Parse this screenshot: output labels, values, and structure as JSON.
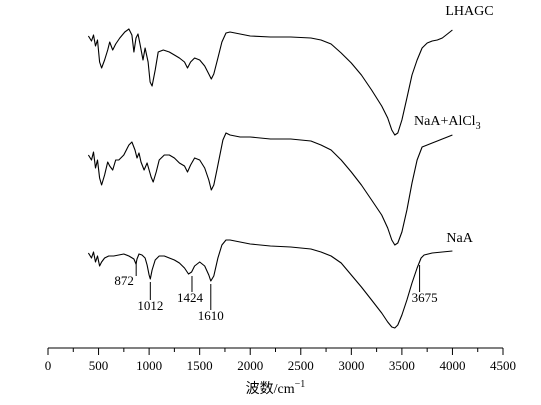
{
  "chart_data": {
    "type": "line",
    "title": "",
    "xlabel": "波数/cm",
    "xlabel_superscript": "−1",
    "ylabel": "",
    "xlim": [
      0,
      4500
    ],
    "xticks": [
      0,
      500,
      1000,
      1500,
      2000,
      2500,
      3000,
      3500,
      4000,
      4500
    ],
    "x_minor_step": 250,
    "grid": false,
    "legend": "none",
    "series": [
      {
        "name": "LHAGC",
        "points": [
          [
            400,
            36
          ],
          [
            430,
            41
          ],
          [
            450,
            35
          ],
          [
            470,
            46
          ],
          [
            490,
            40
          ],
          [
            510,
            62
          ],
          [
            530,
            68
          ],
          [
            560,
            60
          ],
          [
            590,
            50
          ],
          [
            610,
            42
          ],
          [
            640,
            50
          ],
          [
            670,
            44
          ],
          [
            710,
            38
          ],
          [
            760,
            32
          ],
          [
            800,
            29
          ],
          [
            830,
            35
          ],
          [
            850,
            52
          ],
          [
            870,
            38
          ],
          [
            890,
            34
          ],
          [
            910,
            44
          ],
          [
            940,
            60
          ],
          [
            960,
            48
          ],
          [
            990,
            62
          ],
          [
            1010,
            82
          ],
          [
            1030,
            86
          ],
          [
            1060,
            70
          ],
          [
            1090,
            52
          ],
          [
            1140,
            50
          ],
          [
            1200,
            52
          ],
          [
            1250,
            55
          ],
          [
            1300,
            58
          ],
          [
            1350,
            62
          ],
          [
            1380,
            68
          ],
          [
            1410,
            62
          ],
          [
            1450,
            58
          ],
          [
            1500,
            60
          ],
          [
            1550,
            66
          ],
          [
            1590,
            74
          ],
          [
            1615,
            79
          ],
          [
            1640,
            74
          ],
          [
            1680,
            58
          ],
          [
            1720,
            42
          ],
          [
            1760,
            33
          ],
          [
            1800,
            32
          ],
          [
            1900,
            34
          ],
          [
            2000,
            36
          ],
          [
            2200,
            37
          ],
          [
            2400,
            37
          ],
          [
            2600,
            38
          ],
          [
            2700,
            40
          ],
          [
            2800,
            44
          ],
          [
            2900,
            53
          ],
          [
            3000,
            63
          ],
          [
            3100,
            75
          ],
          [
            3200,
            90
          ],
          [
            3300,
            106
          ],
          [
            3360,
            118
          ],
          [
            3400,
            130
          ],
          [
            3430,
            135
          ],
          [
            3460,
            133
          ],
          [
            3500,
            120
          ],
          [
            3550,
            98
          ],
          [
            3600,
            75
          ],
          [
            3650,
            60
          ],
          [
            3700,
            48
          ],
          [
            3750,
            43
          ],
          [
            3800,
            41
          ],
          [
            3850,
            40
          ],
          [
            3900,
            38
          ],
          [
            3950,
            34
          ],
          [
            4000,
            30
          ]
        ],
        "color": "#000000"
      },
      {
        "name": "NaA+AlCl3",
        "points": [
          [
            400,
            155
          ],
          [
            430,
            160
          ],
          [
            450,
            152
          ],
          [
            470,
            168
          ],
          [
            490,
            160
          ],
          [
            510,
            178
          ],
          [
            530,
            185
          ],
          [
            560,
            175
          ],
          [
            590,
            162
          ],
          [
            610,
            166
          ],
          [
            640,
            170
          ],
          [
            670,
            160
          ],
          [
            700,
            160
          ],
          [
            750,
            155
          ],
          [
            800,
            145
          ],
          [
            830,
            142
          ],
          [
            860,
            150
          ],
          [
            880,
            158
          ],
          [
            900,
            153
          ],
          [
            920,
            162
          ],
          [
            950,
            170
          ],
          [
            980,
            163
          ],
          [
            1000,
            170
          ],
          [
            1020,
            177
          ],
          [
            1040,
            182
          ],
          [
            1070,
            172
          ],
          [
            1100,
            160
          ],
          [
            1150,
            155
          ],
          [
            1200,
            155
          ],
          [
            1250,
            158
          ],
          [
            1300,
            163
          ],
          [
            1350,
            166
          ],
          [
            1380,
            172
          ],
          [
            1410,
            165
          ],
          [
            1450,
            158
          ],
          [
            1500,
            160
          ],
          [
            1550,
            168
          ],
          [
            1590,
            180
          ],
          [
            1615,
            190
          ],
          [
            1640,
            185
          ],
          [
            1670,
            170
          ],
          [
            1700,
            155
          ],
          [
            1730,
            140
          ],
          [
            1760,
            133
          ],
          [
            1800,
            135
          ],
          [
            1900,
            137
          ],
          [
            2000,
            137
          ],
          [
            2200,
            139
          ],
          [
            2400,
            139
          ],
          [
            2600,
            141
          ],
          [
            2700,
            145
          ],
          [
            2800,
            150
          ],
          [
            2900,
            160
          ],
          [
            3000,
            172
          ],
          [
            3100,
            185
          ],
          [
            3200,
            200
          ],
          [
            3300,
            215
          ],
          [
            3360,
            228
          ],
          [
            3400,
            240
          ],
          [
            3430,
            245
          ],
          [
            3460,
            243
          ],
          [
            3500,
            232
          ],
          [
            3550,
            210
          ],
          [
            3600,
            183
          ],
          [
            3650,
            160
          ],
          [
            3700,
            147
          ],
          [
            3750,
            145
          ],
          [
            3800,
            143
          ],
          [
            3850,
            141
          ],
          [
            3900,
            139
          ],
          [
            3950,
            137
          ],
          [
            4000,
            135
          ]
        ],
        "color": "#000000"
      },
      {
        "name": "NaA",
        "points": [
          [
            400,
            253
          ],
          [
            430,
            258
          ],
          [
            450,
            252
          ],
          [
            470,
            262
          ],
          [
            490,
            256
          ],
          [
            510,
            266
          ],
          [
            530,
            262
          ],
          [
            560,
            258
          ],
          [
            600,
            256
          ],
          [
            650,
            256
          ],
          [
            700,
            255
          ],
          [
            750,
            254
          ],
          [
            800,
            256
          ],
          [
            850,
            259
          ],
          [
            870,
            264
          ],
          [
            880,
            259
          ],
          [
            900,
            254
          ],
          [
            930,
            255
          ],
          [
            960,
            258
          ],
          [
            980,
            265
          ],
          [
            1000,
            275
          ],
          [
            1012,
            279
          ],
          [
            1030,
            270
          ],
          [
            1060,
            260
          ],
          [
            1100,
            256
          ],
          [
            1150,
            256
          ],
          [
            1200,
            258
          ],
          [
            1250,
            260
          ],
          [
            1300,
            263
          ],
          [
            1350,
            268
          ],
          [
            1390,
            274
          ],
          [
            1420,
            272
          ],
          [
            1450,
            266
          ],
          [
            1500,
            262
          ],
          [
            1550,
            266
          ],
          [
            1590,
            275
          ],
          [
            1610,
            281
          ],
          [
            1640,
            276
          ],
          [
            1680,
            258
          ],
          [
            1720,
            245
          ],
          [
            1760,
            240
          ],
          [
            1800,
            240
          ],
          [
            1900,
            242
          ],
          [
            2000,
            244
          ],
          [
            2200,
            246
          ],
          [
            2400,
            247
          ],
          [
            2600,
            249
          ],
          [
            2700,
            252
          ],
          [
            2800,
            256
          ],
          [
            2900,
            263
          ],
          [
            3000,
            275
          ],
          [
            3100,
            287
          ],
          [
            3200,
            300
          ],
          [
            3300,
            313
          ],
          [
            3360,
            322
          ],
          [
            3400,
            327
          ],
          [
            3430,
            328
          ],
          [
            3460,
            325
          ],
          [
            3500,
            315
          ],
          [
            3550,
            300
          ],
          [
            3600,
            283
          ],
          [
            3650,
            268
          ],
          [
            3670,
            263
          ],
          [
            3690,
            258
          ],
          [
            3720,
            255
          ],
          [
            3800,
            253
          ],
          [
            3900,
            252
          ],
          [
            4000,
            251
          ]
        ],
        "color": "#000000"
      }
    ],
    "series_labels": [
      {
        "text": "LHAGC",
        "x": 3930,
        "y": 15
      },
      {
        "text": "NaA+AlCl",
        "subscript": "3",
        "x": 3620,
        "y": 125
      },
      {
        "text": "NaA",
        "x": 3940,
        "y": 242
      }
    ],
    "annotations": [
      {
        "text": "872",
        "x": 872,
        "y_line_top": 262,
        "y_line_bottom": 276,
        "y_text": 285,
        "text_x_offset": -12
      },
      {
        "text": "1012",
        "x": 1012,
        "y_line_top": 282,
        "y_line_bottom": 300,
        "y_text": 310,
        "text_x_offset": 0
      },
      {
        "text": "1424",
        "x": 1424,
        "y_line_top": 276,
        "y_line_bottom": 292,
        "y_text": 302,
        "text_x_offset": -2
      },
      {
        "text": "1610",
        "x": 1610,
        "y_line_top": 284,
        "y_line_bottom": 310,
        "y_text": 320,
        "text_x_offset": 0
      },
      {
        "text": "3675",
        "x": 3675,
        "y_line_top": 265,
        "y_line_bottom": 292,
        "y_text": 302,
        "text_x_offset": 5
      }
    ]
  }
}
